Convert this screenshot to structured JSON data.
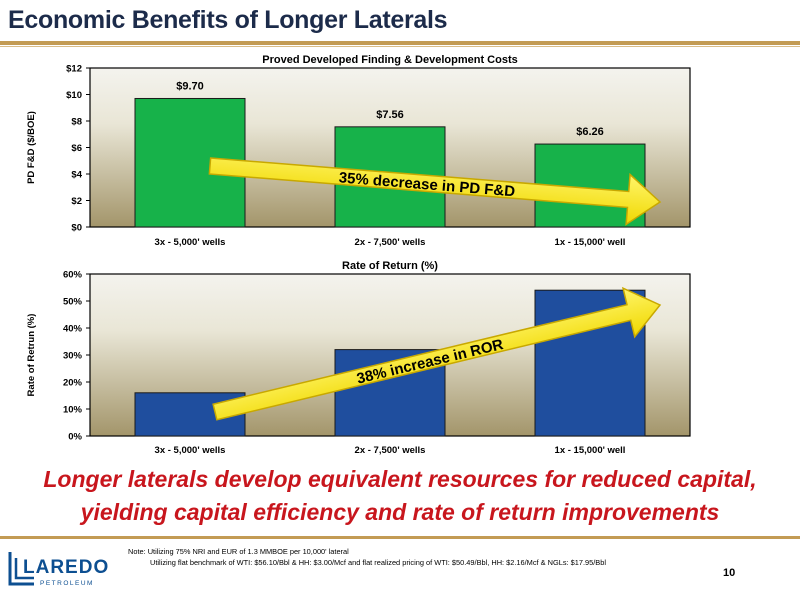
{
  "slide": {
    "title": "Economic Benefits of Longer Laterals",
    "tagline_line1": "Longer laterals develop equivalent resources for reduced capital,",
    "tagline_line2": "yielding capital efficiency and rate of return improvements",
    "note_line1": "Note: Utilizing 75% NRI and EUR of 1.3 MMBOE per 10,000' lateral",
    "note_line2": "Utilizing flat benchmark of WTI: $56.10/Bbl & HH: $3.00/Mcf and flat realized pricing of WTI: $50.49/Bbl, HH: $2.16/Mcf & NGLs: $17.95/Bbl",
    "page_number": "10",
    "logo_word": "LAREDO",
    "logo_sub": "PETROLEUM"
  },
  "colors": {
    "title": "#1c2b4a",
    "accent_gold": "#c39b54",
    "tagline_red": "#c8161d",
    "bar_green": "#17b24a",
    "bar_blue": "#1f4e9e",
    "arrow_yellow": "#f5e60f",
    "arrow_edge": "#c8a800",
    "logo_blue": "#0d4f91"
  },
  "chart_data": [
    {
      "type": "bar",
      "title": "Proved Developed Finding & Development Costs",
      "ylabel": "PD F&D ($/BOE)",
      "categories": [
        "3x - 5,000' wells",
        "2x - 7,500' wells",
        "1x - 15,000' well"
      ],
      "values": [
        9.7,
        7.56,
        6.26
      ],
      "data_labels": [
        "$9.70",
        "$7.56",
        "$6.26"
      ],
      "ylim": [
        0,
        12
      ],
      "yticks": [
        0,
        2,
        4,
        6,
        8,
        10,
        12
      ],
      "ytick_labels": [
        "$0",
        "$2",
        "$4",
        "$6",
        "$8",
        "$10",
        "$12"
      ],
      "color": "#17b24a",
      "annotation": "35% decrease in PD F&D",
      "legend": "none"
    },
    {
      "type": "bar",
      "title": "Rate of Return (%)",
      "ylabel": "Rate of Retrun (%)",
      "categories": [
        "3x - 5,000' wells",
        "2x - 7,500' wells",
        "1x - 15,000' well"
      ],
      "values": [
        16,
        32,
        54
      ],
      "ylim": [
        0,
        60
      ],
      "yticks": [
        0,
        10,
        20,
        30,
        40,
        50,
        60
      ],
      "ytick_labels": [
        "0%",
        "10%",
        "20%",
        "30%",
        "40%",
        "50%",
        "60%"
      ],
      "color": "#1f4e9e",
      "annotation": "38% increase in ROR",
      "legend": "none"
    }
  ]
}
